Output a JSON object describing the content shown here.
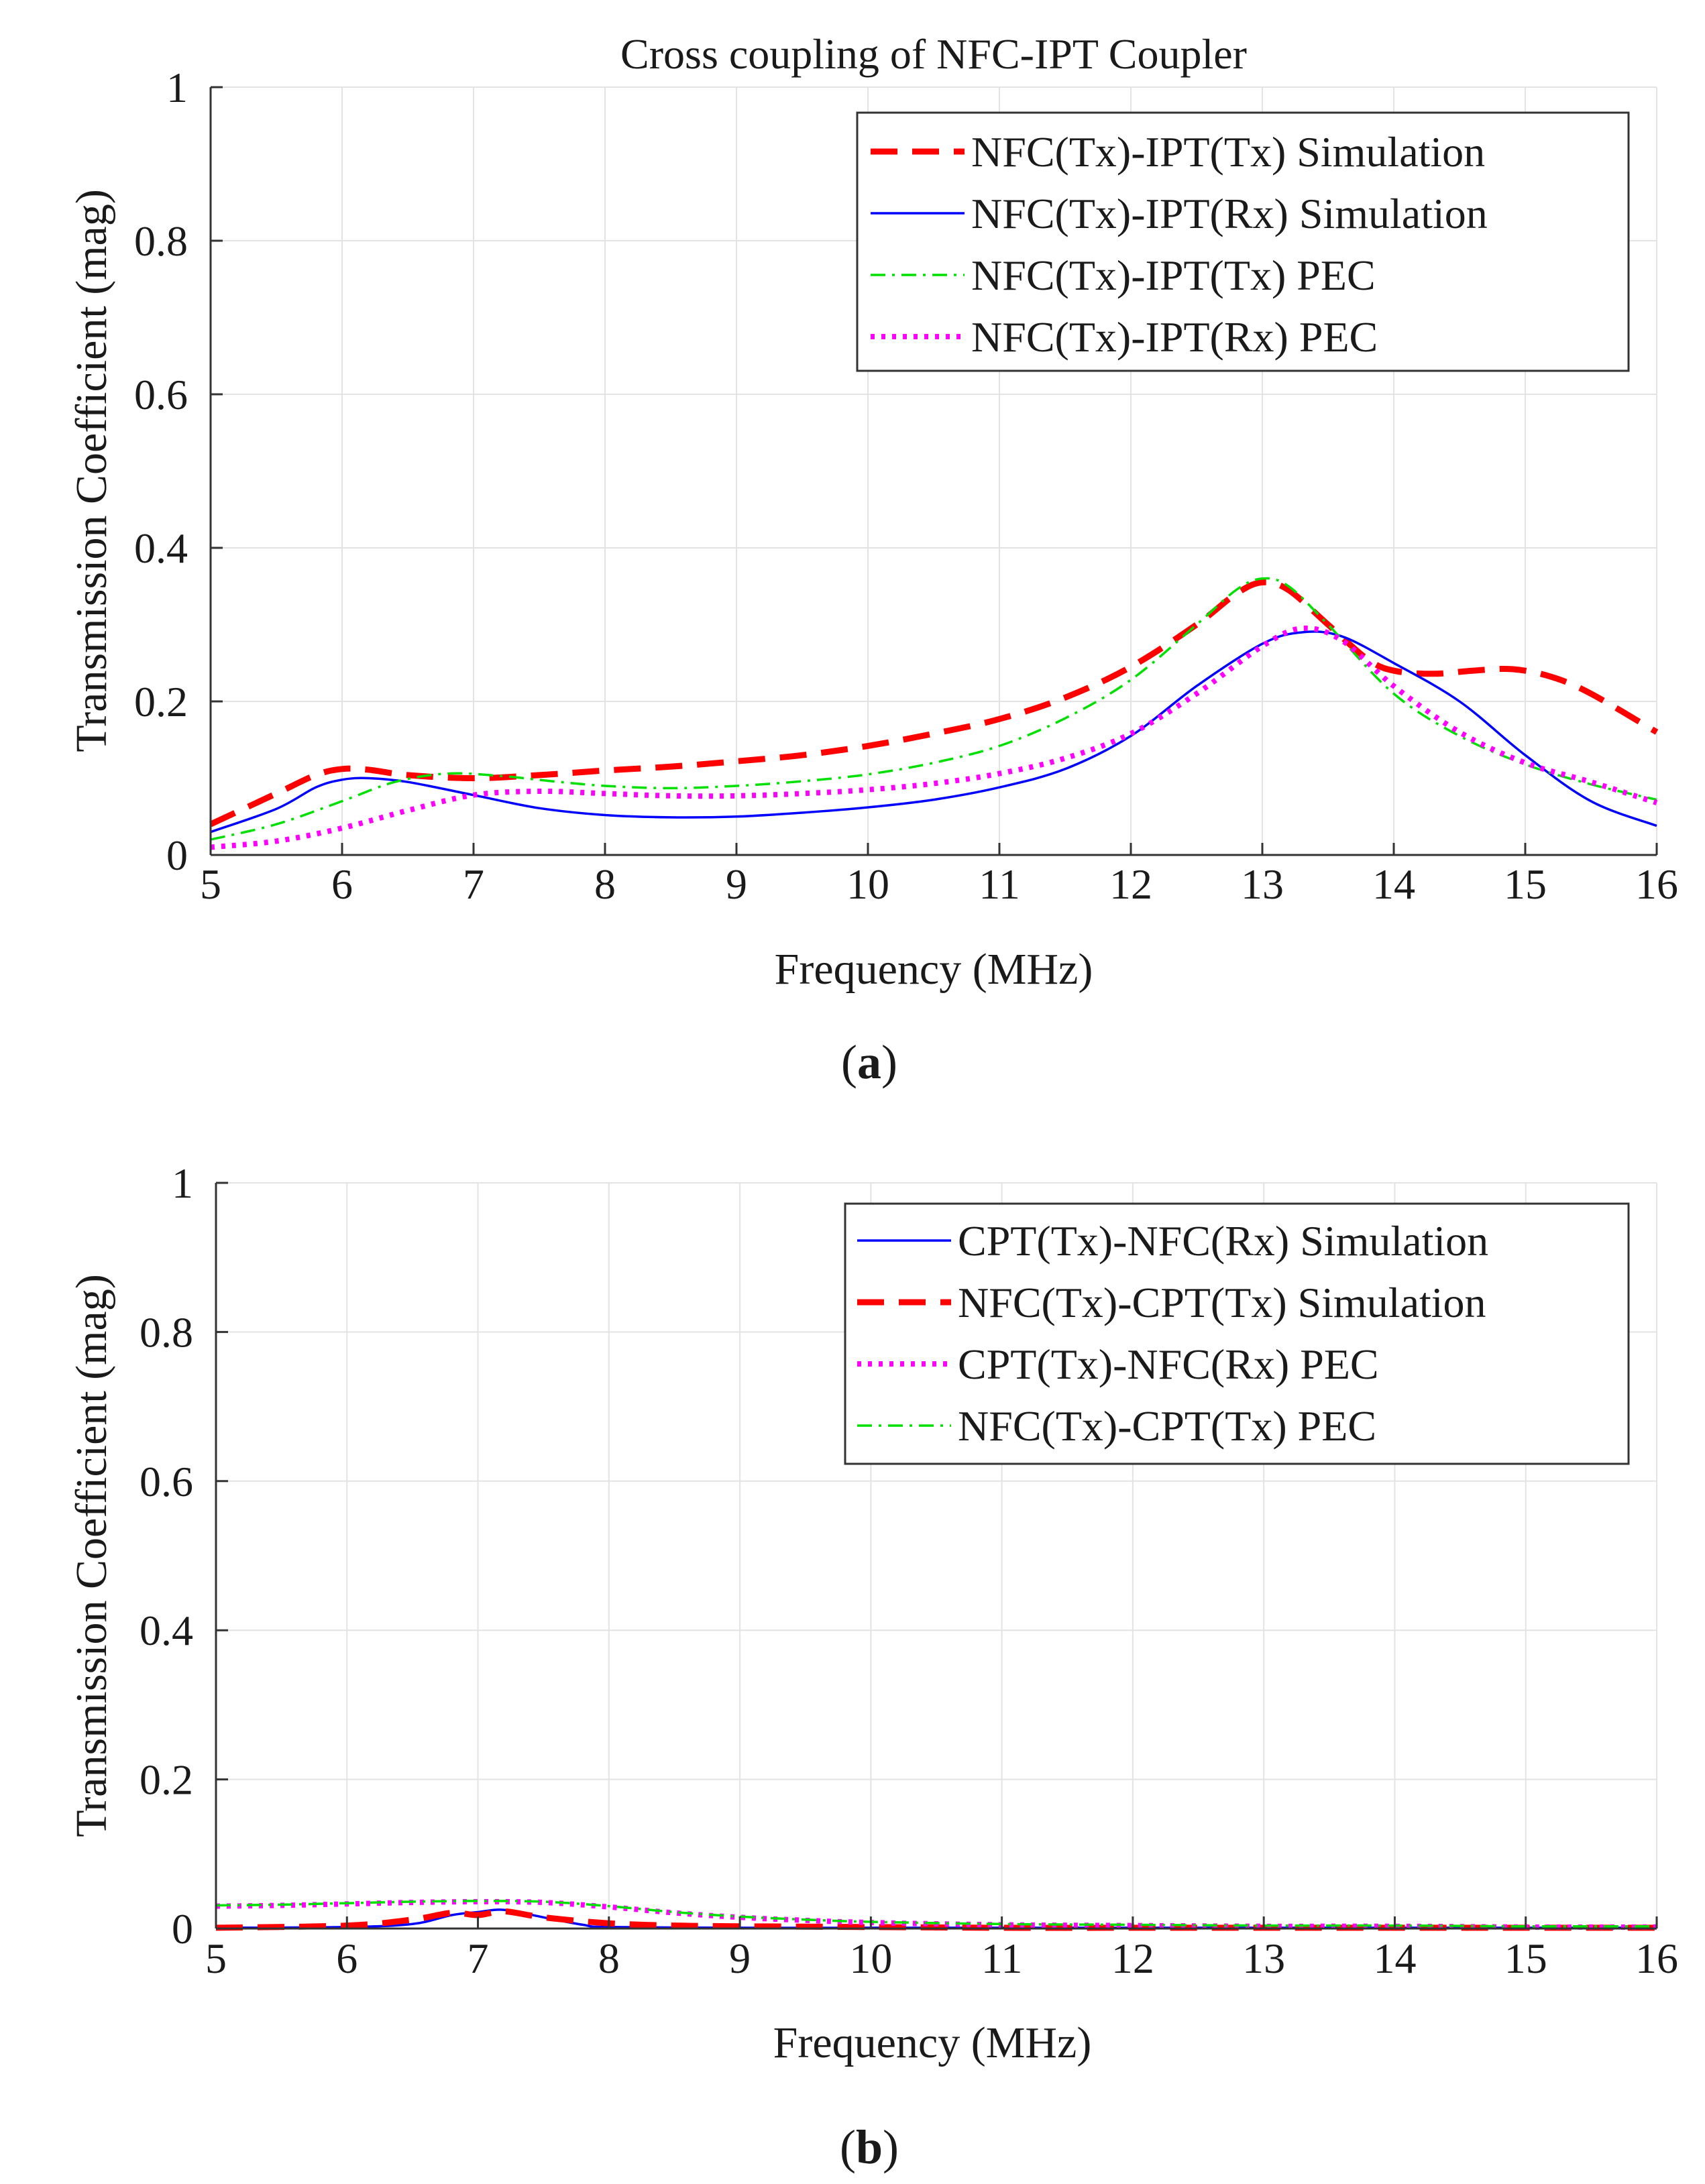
{
  "chart_data": [
    {
      "type": "line",
      "panel_caption": "(a)",
      "caption": {
        "open": "(",
        "letter": "a",
        "close": ")"
      },
      "title": "Cross coupling of NFC-IPT Coupler",
      "xlabel": "Frequency (MHz)",
      "ylabel": "Transmission Coefficient (mag)",
      "xlim": [
        5,
        16
      ],
      "ylim": [
        0,
        1
      ],
      "xticks": [
        "5",
        "6",
        "7",
        "8",
        "9",
        "10",
        "11",
        "12",
        "13",
        "14",
        "15",
        "16"
      ],
      "yticks": [
        "0",
        "0.2",
        "0.4",
        "0.6",
        "0.8",
        "1"
      ],
      "grid": true,
      "legend_position": "top-right",
      "series": [
        {
          "name": "NFC(Tx)-IPT(Tx) Simulation",
          "color": "#ff0000",
          "style": "dashed",
          "x": [
            5,
            5.5,
            5.8,
            6,
            6.2,
            6.5,
            7,
            7.5,
            8,
            8.5,
            9,
            9.5,
            10,
            10.5,
            11,
            11.5,
            12,
            12.5,
            12.8,
            13,
            13.2,
            13.5,
            13.8,
            14,
            14.3,
            14.6,
            14.9,
            15.2,
            15.5,
            16
          ],
          "y": [
            0.04,
            0.08,
            0.104,
            0.112,
            0.111,
            0.104,
            0.1,
            0.104,
            0.11,
            0.115,
            0.122,
            0.13,
            0.142,
            0.158,
            0.177,
            0.205,
            0.245,
            0.3,
            0.34,
            0.355,
            0.345,
            0.3,
            0.255,
            0.24,
            0.236,
            0.24,
            0.242,
            0.232,
            0.21,
            0.16
          ]
        },
        {
          "name": "NFC(Tx)-IPT(Rx) Simulation",
          "color": "#0000ff",
          "style": "solid",
          "x": [
            5,
            5.5,
            5.8,
            6,
            6.2,
            6.5,
            7,
            7.5,
            8,
            8.5,
            9,
            9.5,
            10,
            10.5,
            11,
            11.5,
            12,
            12.5,
            13,
            13.3,
            13.6,
            14,
            14.5,
            15,
            15.5,
            16
          ],
          "y": [
            0.03,
            0.06,
            0.088,
            0.098,
            0.1,
            0.095,
            0.078,
            0.061,
            0.052,
            0.049,
            0.05,
            0.055,
            0.062,
            0.072,
            0.088,
            0.112,
            0.155,
            0.22,
            0.275,
            0.29,
            0.285,
            0.25,
            0.2,
            0.13,
            0.07,
            0.038
          ]
        },
        {
          "name": "NFC(Tx)-IPT(Tx) PEC",
          "color": "#00e000",
          "style": "dashdot",
          "x": [
            5,
            5.5,
            6,
            6.4,
            6.8,
            7.2,
            7.6,
            8,
            8.5,
            9,
            9.5,
            10,
            10.5,
            11,
            11.5,
            12,
            12.5,
            12.8,
            13,
            13.2,
            13.5,
            14,
            14.5,
            15,
            15.5,
            16
          ],
          "y": [
            0.02,
            0.04,
            0.07,
            0.095,
            0.106,
            0.103,
            0.096,
            0.09,
            0.087,
            0.09,
            0.096,
            0.105,
            0.12,
            0.142,
            0.178,
            0.228,
            0.3,
            0.345,
            0.36,
            0.35,
            0.3,
            0.21,
            0.155,
            0.118,
            0.092,
            0.072
          ]
        },
        {
          "name": "NFC(Tx)-IPT(Rx) PEC",
          "color": "#ff00ff",
          "style": "dotted",
          "x": [
            5,
            5.5,
            6,
            6.5,
            7,
            7.5,
            8,
            8.5,
            9,
            9.5,
            10,
            10.5,
            11,
            11.5,
            12,
            12.5,
            13,
            13.3,
            13.6,
            14,
            14.5,
            15,
            15.5,
            16
          ],
          "y": [
            0.01,
            0.018,
            0.035,
            0.058,
            0.078,
            0.083,
            0.08,
            0.077,
            0.077,
            0.08,
            0.085,
            0.093,
            0.106,
            0.126,
            0.158,
            0.21,
            0.272,
            0.295,
            0.28,
            0.22,
            0.16,
            0.12,
            0.095,
            0.068
          ]
        }
      ]
    },
    {
      "type": "line",
      "panel_caption": "(b)",
      "caption": {
        "open": "(",
        "letter": "b",
        "close": ")"
      },
      "title": "",
      "xlabel": "Frequency (MHz)",
      "ylabel": "Transmission Coefficient (mag)",
      "xlim": [
        5,
        16
      ],
      "ylim": [
        0,
        1
      ],
      "xticks": [
        "5",
        "6",
        "7",
        "8",
        "9",
        "10",
        "11",
        "12",
        "13",
        "14",
        "15",
        "16"
      ],
      "yticks": [
        "0",
        "0.2",
        "0.4",
        "0.6",
        "0.8",
        "1"
      ],
      "grid": true,
      "legend_position": "top-right",
      "series": [
        {
          "name": "CPT(Tx)-NFC(Rx) Simulation",
          "color": "#0000ff",
          "style": "solid",
          "x": [
            5,
            6,
            6.5,
            6.8,
            7,
            7.2,
            7.5,
            7.8,
            8,
            9,
            10,
            11,
            12,
            13,
            14,
            15,
            16
          ],
          "y": [
            0.001,
            0.002,
            0.006,
            0.018,
            0.022,
            0.025,
            0.015,
            0.005,
            0.002,
            0.001,
            0.001,
            0.001,
            0.001,
            0.001,
            0.001,
            0.001,
            0.001
          ]
        },
        {
          "name": "NFC(Tx)-CPT(Tx) Simulation",
          "color": "#ff0000",
          "style": "dashed",
          "x": [
            5,
            6,
            6.5,
            6.8,
            7,
            7.2,
            7.5,
            8,
            8.5,
            9,
            10,
            11,
            12,
            13,
            14,
            15,
            16
          ],
          "y": [
            0.001,
            0.004,
            0.012,
            0.021,
            0.018,
            0.023,
            0.015,
            0.007,
            0.004,
            0.003,
            0.002,
            0.001,
            0.001,
            0.001,
            0.001,
            0.001,
            0.001
          ]
        },
        {
          "name": "CPT(Tx)-NFC(Rx) PEC",
          "color": "#ff00ff",
          "style": "dotted",
          "x": [
            5,
            5.5,
            6,
            6.5,
            7,
            7.5,
            8,
            8.5,
            9,
            9.5,
            10,
            11,
            12,
            13,
            14,
            15,
            16
          ],
          "y": [
            0.03,
            0.031,
            0.033,
            0.035,
            0.036,
            0.035,
            0.029,
            0.021,
            0.015,
            0.011,
            0.008,
            0.005,
            0.004,
            0.003,
            0.003,
            0.002,
            0.002
          ]
        },
        {
          "name": "NFC(Tx)-CPT(Tx) PEC",
          "color": "#00e000",
          "style": "dashdot",
          "x": [
            5,
            5.5,
            6,
            6.5,
            7,
            7.5,
            8,
            8.5,
            9,
            9.5,
            10,
            11,
            12,
            13,
            14,
            15,
            16
          ],
          "y": [
            0.031,
            0.032,
            0.034,
            0.036,
            0.037,
            0.036,
            0.03,
            0.022,
            0.016,
            0.012,
            0.009,
            0.006,
            0.005,
            0.004,
            0.004,
            0.003,
            0.003
          ]
        }
      ]
    }
  ]
}
